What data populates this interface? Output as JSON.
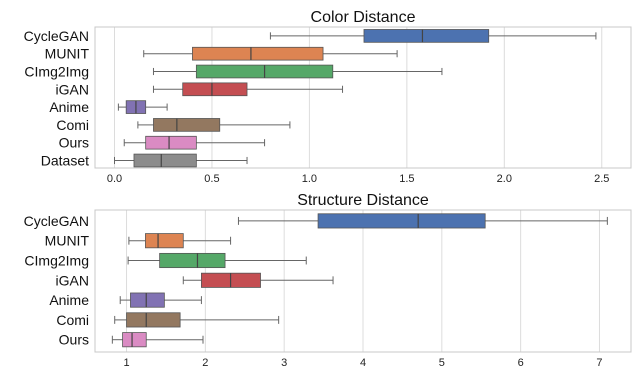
{
  "chart_data": [
    {
      "type": "boxplot",
      "title": "Color Distance",
      "xlabel": "",
      "ylabel": "",
      "xlim": [
        -0.1,
        2.65
      ],
      "xticks": [
        0.0,
        0.5,
        1.0,
        1.5,
        2.0,
        2.5
      ],
      "xtick_labels": [
        "0.0",
        "0.5",
        "1.0",
        "1.5",
        "2.0",
        "2.5"
      ],
      "grid": "vertical",
      "categories": [
        "CycleGAN",
        "MUNIT",
        "CImg2Img",
        "iGAN",
        "Anime",
        "Comi",
        "Ours",
        "Dataset"
      ],
      "colors": [
        "#4c72b0",
        "#dd8452",
        "#55a868",
        "#c44e52",
        "#8172b3",
        "#937860",
        "#da8bc3",
        "#8c8c8c"
      ],
      "boxes": [
        {
          "whislo": 0.8,
          "q1": 1.28,
          "med": 1.58,
          "q3": 1.92,
          "whishi": 2.47
        },
        {
          "whislo": 0.15,
          "q1": 0.4,
          "med": 0.7,
          "q3": 1.07,
          "whishi": 1.45
        },
        {
          "whislo": 0.2,
          "q1": 0.42,
          "med": 0.77,
          "q3": 1.12,
          "whishi": 1.68
        },
        {
          "whislo": 0.2,
          "q1": 0.35,
          "med": 0.5,
          "q3": 0.68,
          "whishi": 1.17
        },
        {
          "whislo": 0.02,
          "q1": 0.06,
          "med": 0.11,
          "q3": 0.16,
          "whishi": 0.27
        },
        {
          "whislo": 0.12,
          "q1": 0.2,
          "med": 0.32,
          "q3": 0.54,
          "whishi": 0.9
        },
        {
          "whislo": 0.05,
          "q1": 0.16,
          "med": 0.28,
          "q3": 0.42,
          "whishi": 0.77
        },
        {
          "whislo": 0.0,
          "q1": 0.1,
          "med": 0.24,
          "q3": 0.42,
          "whishi": 0.68
        }
      ]
    },
    {
      "type": "boxplot",
      "title": "Structure Distance",
      "xlabel": "",
      "ylabel": "",
      "xlim": [
        0.6,
        7.4
      ],
      "xticks": [
        1,
        2,
        3,
        4,
        5,
        6,
        7
      ],
      "xtick_labels": [
        "1",
        "2",
        "3",
        "4",
        "5",
        "6",
        "7"
      ],
      "grid": "vertical",
      "categories": [
        "CycleGAN",
        "MUNIT",
        "CImg2Img",
        "iGAN",
        "Anime",
        "Comi",
        "Ours"
      ],
      "colors": [
        "#4c72b0",
        "#dd8452",
        "#55a868",
        "#c44e52",
        "#8172b3",
        "#937860",
        "#da8bc3"
      ],
      "boxes": [
        {
          "whislo": 2.42,
          "q1": 3.43,
          "med": 4.7,
          "q3": 5.55,
          "whishi": 7.1
        },
        {
          "whislo": 1.03,
          "q1": 1.24,
          "med": 1.4,
          "q3": 1.72,
          "whishi": 2.32
        },
        {
          "whislo": 1.02,
          "q1": 1.42,
          "med": 1.9,
          "q3": 2.25,
          "whishi": 3.28
        },
        {
          "whislo": 1.72,
          "q1": 1.95,
          "med": 2.32,
          "q3": 2.7,
          "whishi": 3.62
        },
        {
          "whislo": 0.92,
          "q1": 1.05,
          "med": 1.25,
          "q3": 1.48,
          "whishi": 1.95
        },
        {
          "whislo": 0.85,
          "q1": 1.0,
          "med": 1.25,
          "q3": 1.68,
          "whishi": 2.93
        },
        {
          "whislo": 0.82,
          "q1": 0.95,
          "med": 1.07,
          "q3": 1.25,
          "whishi": 1.97
        }
      ]
    }
  ]
}
